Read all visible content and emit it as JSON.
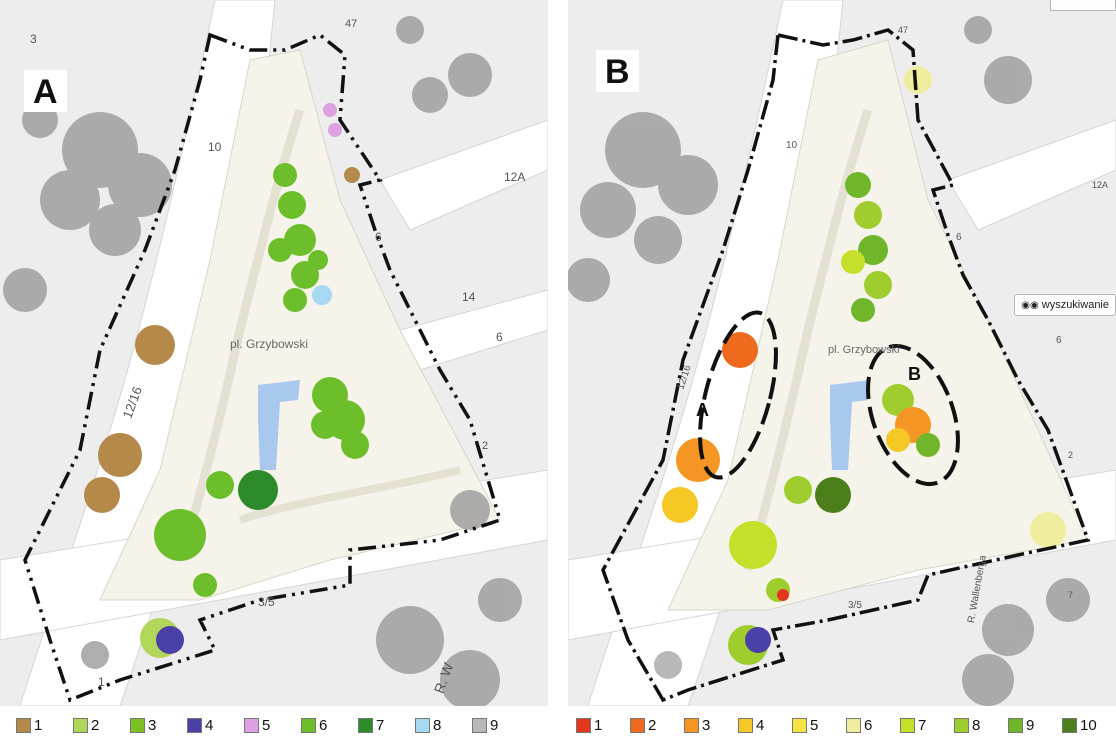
{
  "panel_a": {
    "label": "A",
    "place_name": "pl. Grzybowski",
    "street_labels": [
      "10",
      "12/16",
      "6",
      "14",
      "6",
      "3/5",
      "R. W",
      "12A",
      "3",
      "1",
      "2",
      "47"
    ]
  },
  "panel_b": {
    "label": "B",
    "place_name": "pl. Grzybowski",
    "zone_labels": [
      "A",
      "B"
    ],
    "search_button": "wyszukiwanie",
    "street_labels": [
      "10",
      "12/16",
      "6",
      "6",
      "3/5",
      "R. Wallenberga",
      "12A",
      "2",
      "7",
      "47"
    ]
  },
  "legend_a": {
    "items": [
      {
        "label": "1",
        "color": "#b5894a"
      },
      {
        "label": "2",
        "color": "#b2d65a"
      },
      {
        "label": "3",
        "color": "#7cc024"
      },
      {
        "label": "4",
        "color": "#4b3fa8"
      },
      {
        "label": "5",
        "color": "#dda0e0"
      },
      {
        "label": "6",
        "color": "#6cbf2a"
      },
      {
        "label": "7",
        "color": "#2d8a2a"
      },
      {
        "label": "8",
        "color": "#a6d8f2"
      },
      {
        "label": "9",
        "color": "#b8b8b8"
      }
    ]
  },
  "legend_b": {
    "items": [
      {
        "label": "1",
        "color": "#e4361c"
      },
      {
        "label": "2",
        "color": "#ee6a1c"
      },
      {
        "label": "3",
        "color": "#f49524"
      },
      {
        "label": "4",
        "color": "#f5c826"
      },
      {
        "label": "5",
        "color": "#f6e444"
      },
      {
        "label": "6",
        "color": "#efee9e"
      },
      {
        "label": "7",
        "color": "#c6df2a"
      },
      {
        "label": "8",
        "color": "#9fcd2e"
      },
      {
        "label": "9",
        "color": "#6fb62a"
      },
      {
        "label": "10",
        "color": "#4c7f1c"
      }
    ]
  }
}
